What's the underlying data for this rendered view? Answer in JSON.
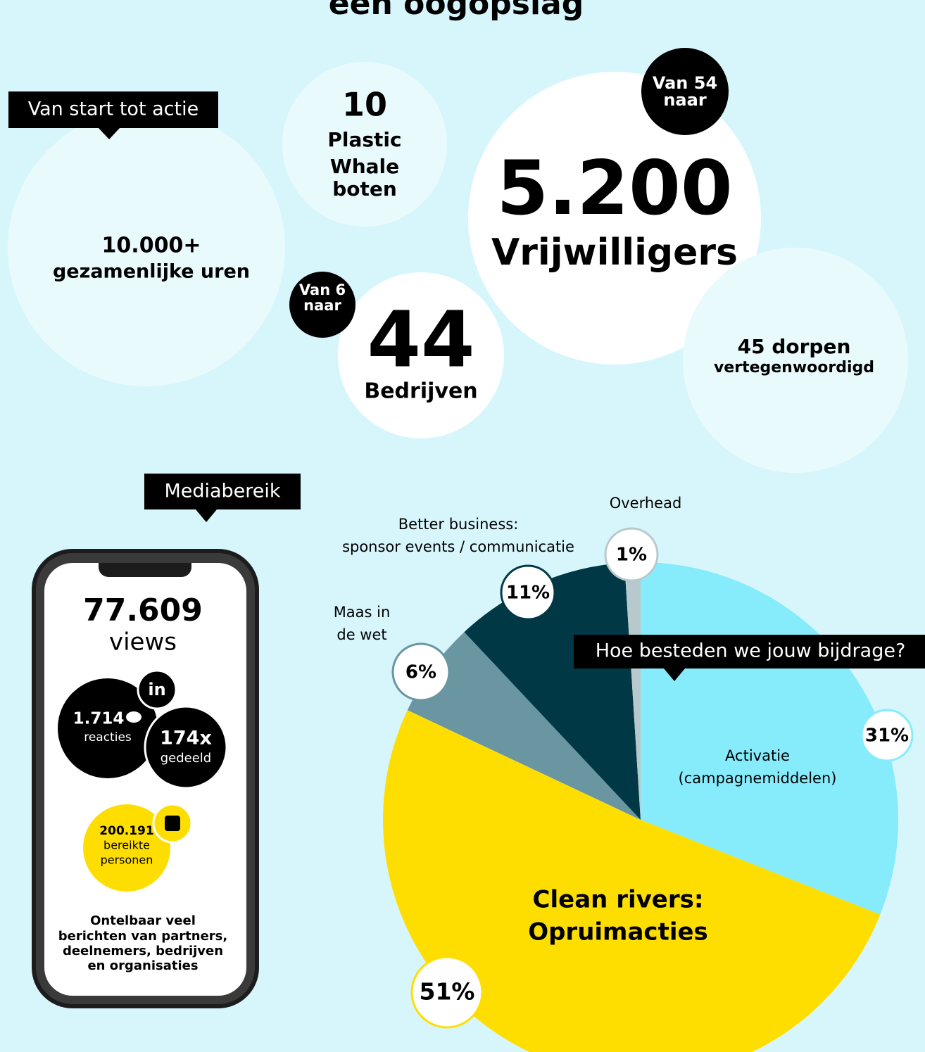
{
  "header": {
    "title": "een oogopslag"
  },
  "stats": {
    "label": "Van start tot actie",
    "hours": {
      "number": "10.000+",
      "text": "gezamenlijke uren"
    },
    "boats": {
      "number": "10",
      "lines": [
        "Plastic",
        "Whale",
        "boten"
      ]
    },
    "volunteers": {
      "badge": [
        "Van 54",
        "naar"
      ],
      "number": "5.200",
      "text": "Vrijwilligers"
    },
    "companies": {
      "badge": [
        "Van 6",
        "naar"
      ],
      "number": "44",
      "text": "Bedrijven"
    },
    "villages": {
      "number": "45 dorpen",
      "text": "vertegenwoordigd"
    }
  },
  "media": {
    "label": "Mediabereik",
    "views": {
      "number": "77.609",
      "text": "views"
    },
    "linkedin": {
      "icon": "in",
      "reactions": {
        "number": "1.714",
        "text": "reacties"
      },
      "shares": {
        "number": "174x",
        "text": "gedeeld"
      }
    },
    "facebook": {
      "number": "200.191",
      "lines": [
        "bereikte",
        "personen"
      ]
    },
    "note": [
      "Ontelbaar veel",
      "berichten van partners,",
      "deelnemers, bedrijven",
      "en organisaties"
    ]
  },
  "chart_data": {
    "type": "pie",
    "title": "Hoe besteden we jouw bijdrage?",
    "categories": [
      [
        "Activatie",
        "(campagnemiddelen)"
      ],
      [
        "Clean rivers:",
        "Opruimacties"
      ],
      [
        "Maas in",
        "de wet"
      ],
      [
        "Better business:",
        "sponsor events / communicatie"
      ],
      [
        "Overhead"
      ]
    ],
    "values": [
      31,
      51,
      6,
      11,
      1
    ],
    "value_labels": [
      "31%",
      "51%",
      "6%",
      "11%",
      "1%"
    ],
    "colors": [
      "#86ecfb",
      "#fede00",
      "#6a96a2",
      "#003945",
      "#b8c9cd"
    ]
  }
}
